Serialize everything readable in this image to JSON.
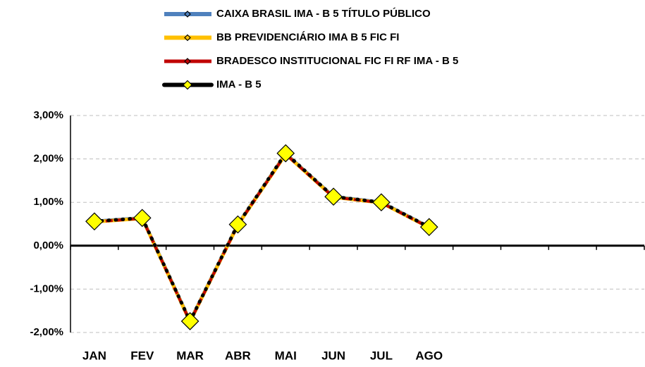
{
  "chart_data": {
    "type": "line",
    "categories": [
      "JAN",
      "FEV",
      "MAR",
      "ABR",
      "MAI",
      "JUN",
      "JUL",
      "AGO",
      null,
      null,
      null,
      null
    ],
    "series": [
      {
        "name": "CAIXA BRASIL IMA - B 5 TÍTULO PÚBLICO",
        "color": "#4f81bd",
        "values": [
          0.56,
          0.64,
          -1.74,
          0.49,
          2.12,
          1.13,
          1.0,
          0.43,
          null,
          null,
          null,
          null
        ]
      },
      {
        "name": "BB PREVIDENCIÁRIO IMA B 5 FIC FI",
        "color": "#ffc000",
        "values": [
          0.55,
          0.63,
          -1.75,
          0.48,
          2.11,
          1.12,
          0.99,
          0.42,
          null,
          null,
          null,
          null
        ]
      },
      {
        "name": "BRADESCO INSTITUCIONAL FIC FI RF IMA - B 5",
        "color": "#c00000",
        "values": [
          0.55,
          0.63,
          -1.75,
          0.48,
          2.11,
          1.12,
          0.99,
          0.42,
          null,
          null,
          null,
          null
        ]
      },
      {
        "name": "IMA - B 5",
        "color": "#000000",
        "marker_color": "#ffff00",
        "values": [
          0.56,
          0.64,
          -1.74,
          0.49,
          2.13,
          1.13,
          1.0,
          0.43,
          null,
          null,
          null,
          null
        ]
      }
    ],
    "ylim": [
      -2,
      3
    ],
    "yticks": [
      {
        "value": -2,
        "label": "-2,00%"
      },
      {
        "value": -1,
        "label": "-1,00%"
      },
      {
        "value": 0,
        "label": "0,00%"
      },
      {
        "value": 1,
        "label": "1,00%"
      },
      {
        "value": 2,
        "label": "2,00%"
      },
      {
        "value": 3,
        "label": "3,00%"
      }
    ],
    "grid": true,
    "legend": "top"
  }
}
